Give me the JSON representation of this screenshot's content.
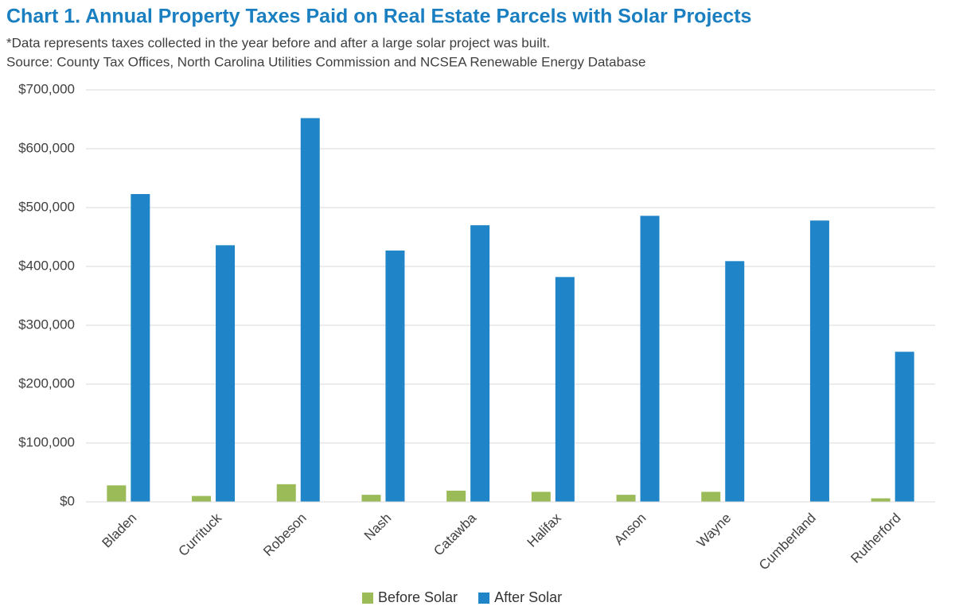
{
  "chart_data": {
    "type": "bar",
    "title": "Chart 1. Annual Property Taxes Paid on Real Estate Parcels with Solar Projects",
    "subtitle": "*Data represents taxes collected in the year before and after a large solar project was built.",
    "source": "Source: County Tax Offices, North Carolina Utilities Commission and NCSEA Renewable Energy Database",
    "categories": [
      "Bladen",
      "Currituck",
      "Robeson",
      "Nash",
      "Catawba",
      "Halifax",
      "Anson",
      "Wayne",
      "Cumberland",
      "Rutherford"
    ],
    "series": [
      {
        "name": "Before Solar",
        "color": "#9bbb59",
        "values": [
          28000,
          10000,
          30000,
          12000,
          19000,
          17000,
          12000,
          17000,
          0,
          6000
        ]
      },
      {
        "name": "After Solar",
        "color": "#1f85c8",
        "values": [
          523000,
          436000,
          652000,
          427000,
          470000,
          382000,
          486000,
          409000,
          478000,
          255000
        ]
      }
    ],
    "ylim": [
      0,
      700000
    ],
    "yticks": [
      {
        "value": 0,
        "label": "$0"
      },
      {
        "value": 100000,
        "label": "$100,000"
      },
      {
        "value": 200000,
        "label": "$200,000"
      },
      {
        "value": 300000,
        "label": "$300,000"
      },
      {
        "value": 400000,
        "label": "$400,000"
      },
      {
        "value": 500000,
        "label": "$500,000"
      },
      {
        "value": 600000,
        "label": "$600,000"
      },
      {
        "value": 700000,
        "label": "$700,000"
      }
    ],
    "grid": true,
    "legend": "bottom"
  }
}
